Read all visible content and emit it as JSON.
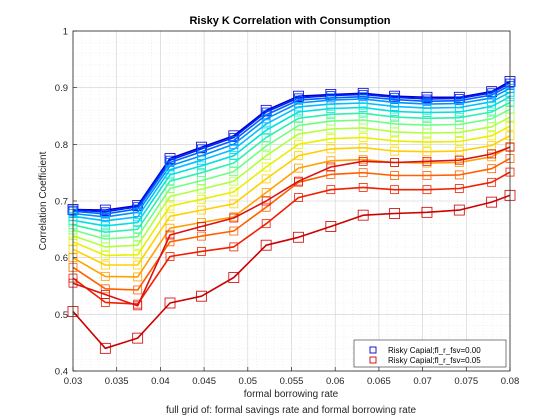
{
  "chart_data": {
    "type": "line",
    "title": "Risky K Correlation with Consumption",
    "xlabel": "formal borrowing rate",
    "ylabel": "Correlation Coefficient",
    "xlim": [
      0.03,
      0.08
    ],
    "ylim": [
      0.4,
      1.0
    ],
    "grid": true,
    "x_ticks": [
      "0.03",
      "0.035",
      "0.04",
      "0.045",
      "0.05",
      "0.055",
      "0.06",
      "0.065",
      "0.07",
      "0.075",
      "0.08"
    ],
    "y_ticks": [
      "0.4",
      "0.5",
      "0.6",
      "0.7",
      "0.8",
      "0.9",
      "1"
    ],
    "legend_position": "bottom-right",
    "legend": [
      {
        "label": "Risky Capial;fl_r_fsv=0.00",
        "color": "#0000cc"
      },
      {
        "label": "Risky Capial;fl_r_fsv=0.05",
        "color": "#cc0000"
      }
    ],
    "x": [
      0.03,
      0.0337,
      0.0374,
      0.0411,
      0.0447,
      0.0484,
      0.0521,
      0.0558,
      0.0595,
      0.0632,
      0.0668,
      0.0705,
      0.0742,
      0.0779,
      0.08
    ],
    "series": [
      {
        "name": "Risky Capial;fl_r_fsv=0.00",
        "color": "#0000cc",
        "values": [
          0.685,
          0.684,
          0.692,
          0.775,
          0.795,
          0.815,
          0.86,
          0.885,
          0.888,
          0.89,
          0.885,
          0.883,
          0.883,
          0.893,
          0.911
        ]
      },
      {
        "color": "#0020ff",
        "values": [
          0.684,
          0.681,
          0.69,
          0.772,
          0.792,
          0.812,
          0.857,
          0.882,
          0.886,
          0.888,
          0.883,
          0.88,
          0.881,
          0.891,
          0.908
        ]
      },
      {
        "color": "#0060ff",
        "values": [
          0.682,
          0.677,
          0.686,
          0.768,
          0.787,
          0.807,
          0.852,
          0.878,
          0.882,
          0.884,
          0.879,
          0.876,
          0.877,
          0.887,
          0.904
        ]
      },
      {
        "color": "#0090ff",
        "values": [
          0.678,
          0.672,
          0.68,
          0.762,
          0.78,
          0.8,
          0.845,
          0.873,
          0.878,
          0.88,
          0.874,
          0.871,
          0.872,
          0.882,
          0.899
        ]
      },
      {
        "color": "#00c0ff",
        "values": [
          0.673,
          0.665,
          0.672,
          0.755,
          0.772,
          0.791,
          0.836,
          0.866,
          0.871,
          0.873,
          0.867,
          0.864,
          0.865,
          0.875,
          0.892
        ]
      },
      {
        "color": "#00e0e0",
        "values": [
          0.666,
          0.656,
          0.662,
          0.746,
          0.762,
          0.78,
          0.825,
          0.857,
          0.863,
          0.865,
          0.858,
          0.856,
          0.857,
          0.867,
          0.884
        ]
      },
      {
        "color": "#30f0b0",
        "values": [
          0.658,
          0.645,
          0.65,
          0.735,
          0.75,
          0.767,
          0.812,
          0.846,
          0.853,
          0.855,
          0.848,
          0.846,
          0.847,
          0.857,
          0.874
        ]
      },
      {
        "color": "#70ff80",
        "values": [
          0.649,
          0.633,
          0.637,
          0.722,
          0.736,
          0.752,
          0.797,
          0.833,
          0.841,
          0.843,
          0.836,
          0.834,
          0.835,
          0.845,
          0.862
        ]
      },
      {
        "color": "#b0ff40",
        "values": [
          0.639,
          0.619,
          0.622,
          0.708,
          0.721,
          0.735,
          0.78,
          0.818,
          0.827,
          0.829,
          0.822,
          0.82,
          0.821,
          0.831,
          0.848
        ]
      },
      {
        "color": "#e8f000",
        "values": [
          0.628,
          0.604,
          0.605,
          0.691,
          0.703,
          0.716,
          0.76,
          0.8,
          0.81,
          0.812,
          0.806,
          0.804,
          0.805,
          0.815,
          0.832
        ]
      },
      {
        "color": "#ffd000",
        "values": [
          0.615,
          0.587,
          0.587,
          0.673,
          0.684,
          0.695,
          0.739,
          0.78,
          0.792,
          0.794,
          0.788,
          0.787,
          0.788,
          0.798,
          0.815
        ]
      },
      {
        "color": "#ffa000",
        "values": [
          0.6,
          0.567,
          0.566,
          0.652,
          0.662,
          0.672,
          0.715,
          0.758,
          0.771,
          0.773,
          0.768,
          0.767,
          0.768,
          0.778,
          0.796
        ]
      },
      {
        "color": "#ff6000",
        "values": [
          0.583,
          0.545,
          0.543,
          0.628,
          0.638,
          0.647,
          0.689,
          0.733,
          0.747,
          0.75,
          0.745,
          0.745,
          0.746,
          0.757,
          0.775
        ]
      },
      {
        "color": "#ee2000",
        "values": [
          0.564,
          0.521,
          0.518,
          0.602,
          0.611,
          0.619,
          0.66,
          0.706,
          0.72,
          0.724,
          0.72,
          0.72,
          0.722,
          0.733,
          0.751
        ]
      },
      {
        "color": "#dd1010",
        "values": [
          0.555,
          0.535,
          0.515,
          0.64,
          0.655,
          0.67,
          0.7,
          0.735,
          0.76,
          0.77,
          0.768,
          0.77,
          0.772,
          0.783,
          0.795
        ]
      },
      {
        "name": "Risky Capial;fl_r_fsv=0.05",
        "color": "#cc0000",
        "values": [
          0.505,
          0.44,
          0.458,
          0.52,
          0.532,
          0.565,
          0.622,
          0.636,
          0.655,
          0.675,
          0.678,
          0.68,
          0.684,
          0.698,
          0.71
        ]
      }
    ]
  },
  "caption": "full grid of: formal savings rate and formal borrowing rate"
}
